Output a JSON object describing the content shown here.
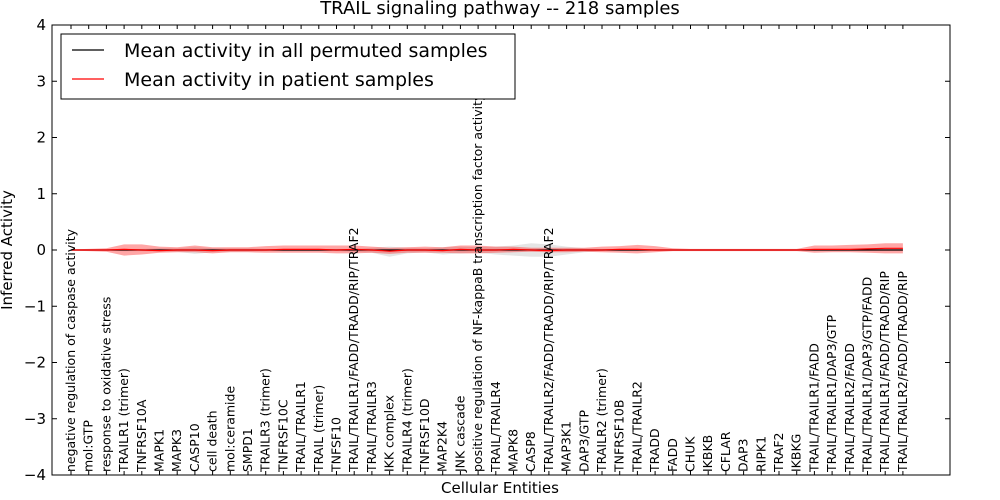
{
  "chart_data": {
    "type": "line",
    "title": "TRAIL signaling pathway -- 218 samples",
    "xlabel": "Cellular Entities",
    "ylabel": "Inferred Activity",
    "ylim": [
      -4,
      4
    ],
    "yticks": [
      "4",
      "3",
      "2",
      "1",
      "0",
      "−1",
      "−2",
      "−3",
      "−4"
    ],
    "ytick_values": [
      4,
      3,
      2,
      1,
      0,
      -1,
      -2,
      -3,
      -4
    ],
    "legend": {
      "position": "top-left",
      "entries": [
        {
          "label": "Mean activity in all permuted samples",
          "color": "#000000"
        },
        {
          "label": "Mean activity in patient samples",
          "color": "#ff0000"
        }
      ]
    },
    "colors": {
      "permuted_line": "#000000",
      "permuted_band": "#cfcfcf",
      "patient_line": "#ff0000",
      "patient_band": "#ff0000"
    },
    "categories": [
      "negative regulation of caspase activity",
      "mol:GTP",
      "response to oxidative stress",
      "TRAILR1 (trimer)",
      "TNFRSF10A",
      "MAPK1",
      "MAPK3",
      "CASP10",
      "cell death",
      "mol:ceramide",
      "SMPD1",
      "TRAILR3 (trimer)",
      "TNFRSF10C",
      "TRAIL/TRAILR1",
      "TRAIL (trimer)",
      "TNFSF10",
      "TRAIL/TRAILR1/FADD/TRADD/RIP/TRAF2",
      "TRAIL/TRAILR3",
      "IKK complex",
      "TRAILR4 (trimer)",
      "TNFRSF10D",
      "MAP2K4",
      "JNK cascade",
      "positive regulation of NF-kappaB transcription factor activity",
      "TRAIL/TRAILR4",
      "MAPK8",
      "CASP8",
      "TRAIL/TRAILR2/FADD/TRADD/RIP/TRAF2",
      "MAP3K1",
      "DAP3/GTP",
      "TRAILR2 (trimer)",
      "TNFRSF10B",
      "TRAIL/TRAILR2",
      "TRADD",
      "FADD",
      "CHUK",
      "IKBKB",
      "CFLAR",
      "DAP3",
      "RIPK1",
      "TRAF2",
      "IKBKG",
      "TRAIL/TRAILR1/FADD",
      "TRAIL/TRAILR1/DAP3/GTP",
      "TRAIL/TRAILR2/FADD",
      "TRAIL/TRAILR1/DAP3/GTP/FADD",
      "TRAIL/TRAILR1/FADD/TRADD/RIP",
      "TRAIL/TRAILR2/FADD/TRADD/RIP"
    ],
    "series": [
      {
        "name": "Mean activity in all permuted samples",
        "values": [
          0,
          0,
          0,
          0,
          0,
          0,
          0,
          0,
          0,
          0,
          0,
          0,
          0,
          0,
          0,
          0,
          0,
          0,
          0,
          0,
          0,
          0,
          0,
          0,
          0,
          0,
          0,
          0,
          0,
          0,
          0,
          0,
          0,
          0,
          0,
          0,
          0,
          0,
          0,
          0,
          0,
          0,
          0,
          0,
          0,
          0,
          0,
          0
        ],
        "band_upper": [
          0.01,
          0.01,
          0.01,
          0.02,
          0.02,
          0.03,
          0.03,
          0.05,
          0.03,
          0.03,
          0.03,
          0.02,
          0.02,
          0.02,
          0.02,
          0.02,
          0.02,
          0.04,
          0.06,
          0.04,
          0.03,
          0.05,
          0.06,
          0.05,
          0.06,
          0.08,
          0.12,
          0.1,
          0.06,
          0.03,
          0.02,
          0.02,
          0.02,
          0.01,
          0.01,
          0.01,
          0.01,
          0.01,
          0.01,
          0.01,
          0.01,
          0.01,
          0.01,
          0.01,
          0.01,
          0.01,
          0.01,
          0.01
        ],
        "band_lower": [
          -0.01,
          -0.01,
          -0.01,
          -0.02,
          -0.02,
          -0.03,
          -0.03,
          -0.07,
          -0.04,
          -0.03,
          -0.03,
          -0.02,
          -0.02,
          -0.02,
          -0.02,
          -0.02,
          -0.03,
          -0.05,
          -0.12,
          -0.06,
          -0.04,
          -0.08,
          -0.06,
          -0.05,
          -0.08,
          -0.1,
          -0.12,
          -0.12,
          -0.08,
          -0.04,
          -0.02,
          -0.02,
          -0.02,
          -0.01,
          -0.01,
          -0.01,
          -0.01,
          -0.01,
          -0.01,
          -0.01,
          -0.01,
          -0.01,
          -0.01,
          -0.01,
          -0.01,
          -0.01,
          -0.01,
          -0.01
        ]
      },
      {
        "name": "Mean activity in patient samples",
        "values": [
          0.0,
          0.0,
          0.0,
          0.01,
          0.0,
          -0.01,
          0.0,
          0.0,
          -0.01,
          0.0,
          0.0,
          0.0,
          0.01,
          0.01,
          0.01,
          0.0,
          0.01,
          0.0,
          -0.02,
          0.0,
          0.0,
          -0.01,
          0.01,
          0.0,
          0.0,
          0.01,
          0.0,
          -0.01,
          0.0,
          0.0,
          0.0,
          0.01,
          0.01,
          0.0,
          0.0,
          0.0,
          0.0,
          0.0,
          0.0,
          0.0,
          0.0,
          0.0,
          0.01,
          0.01,
          0.01,
          0.02,
          0.03,
          0.03
        ],
        "band_upper": [
          0.01,
          0.02,
          0.03,
          0.1,
          0.1,
          0.06,
          0.05,
          0.08,
          0.05,
          0.05,
          0.05,
          0.07,
          0.08,
          0.08,
          0.08,
          0.08,
          0.08,
          0.06,
          0.04,
          0.05,
          0.06,
          0.05,
          0.08,
          0.08,
          0.06,
          0.06,
          0.04,
          0.04,
          0.04,
          0.04,
          0.06,
          0.07,
          0.09,
          0.07,
          0.03,
          0.02,
          0.02,
          0.02,
          0.02,
          0.02,
          0.02,
          0.02,
          0.08,
          0.08,
          0.09,
          0.1,
          0.12,
          0.12
        ],
        "band_lower": [
          -0.01,
          -0.02,
          -0.03,
          -0.1,
          -0.08,
          -0.05,
          -0.04,
          -0.04,
          -0.06,
          -0.04,
          -0.04,
          -0.05,
          -0.05,
          -0.05,
          -0.05,
          -0.06,
          -0.06,
          -0.05,
          -0.07,
          -0.05,
          -0.05,
          -0.05,
          -0.06,
          -0.06,
          -0.05,
          -0.04,
          -0.03,
          -0.04,
          -0.04,
          -0.03,
          -0.04,
          -0.05,
          -0.06,
          -0.04,
          -0.02,
          -0.02,
          -0.02,
          -0.02,
          -0.02,
          -0.02,
          -0.02,
          -0.02,
          -0.05,
          -0.04,
          -0.04,
          -0.05,
          -0.06,
          -0.06
        ]
      }
    ]
  }
}
